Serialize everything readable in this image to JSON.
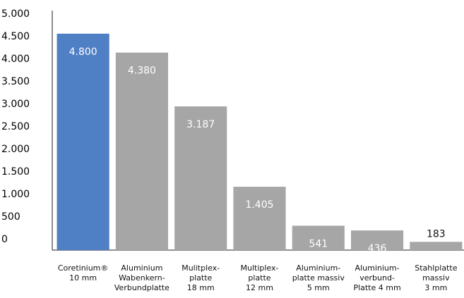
{
  "chart_data": {
    "type": "bar",
    "categories": [
      "Coretinium®\n10 mm",
      "Aluminium\nWabenkern-\nVerbundplatte",
      "Mulitplex-\nplatte\n18 mm",
      "Multiplex-\nplatte\n12 mm",
      "Aluminium-\nplatte massiv\n5 mm",
      "Aluminium-\nverbund-\nPlatte 4 mm",
      "Stahlplatte\nmassiv\n3 mm"
    ],
    "values": [
      4800,
      4380,
      3187,
      1405,
      541,
      436,
      183
    ],
    "value_labels": [
      "4.800",
      "4.380",
      "3.187",
      "1.405",
      "541",
      "436",
      "183"
    ],
    "colors": [
      "#4f7fc4",
      "#a6a6a6",
      "#a6a6a6",
      "#a6a6a6",
      "#a6a6a6",
      "#a6a6a6",
      "#a6a6a6"
    ],
    "ylim": [
      0,
      5000
    ],
    "yticks": [
      {
        "value": 0,
        "label": "0"
      },
      {
        "value": 500,
        "label": "500"
      },
      {
        "value": 1000,
        "label": "1.000"
      },
      {
        "value": 1500,
        "label": "1.500"
      },
      {
        "value": 2000,
        "label": "2.000"
      },
      {
        "value": 2500,
        "label": "2.500"
      },
      {
        "value": 3000,
        "label": "3.000"
      },
      {
        "value": 3500,
        "label": "3.500"
      },
      {
        "value": 4000,
        "label": "4.000"
      },
      {
        "value": 4500,
        "label": "4.500"
      },
      {
        "value": 5000,
        "label": "5.000"
      }
    ],
    "grid": false
  }
}
